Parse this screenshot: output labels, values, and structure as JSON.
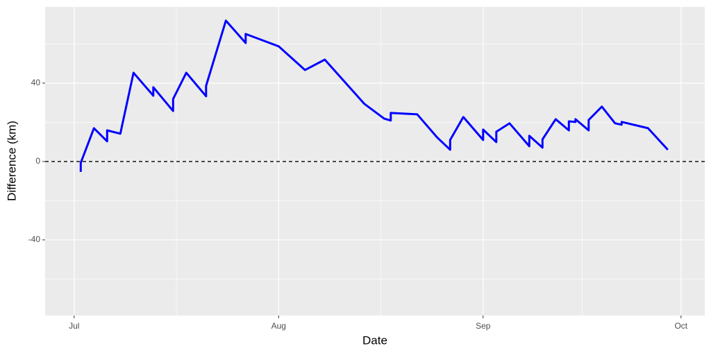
{
  "chart_data": {
    "type": "line",
    "xlabel": "Date",
    "ylabel": "Difference (km)",
    "x": [
      1,
      1,
      3,
      5,
      5,
      7,
      9,
      12,
      12,
      15,
      15,
      17,
      20,
      20,
      23,
      26,
      26,
      31,
      35,
      38,
      44,
      47,
      48,
      48,
      52,
      55,
      57,
      57,
      59,
      62,
      62,
      64,
      64,
      66,
      69,
      69,
      71,
      71,
      73,
      75,
      75,
      76,
      76,
      78,
      78,
      80,
      82,
      83,
      83,
      87,
      90
    ],
    "series": [
      {
        "color": "#0000ff",
        "values": [
          -5.3,
          -0.7,
          17.0,
          10.3,
          15.9,
          14.2,
          45.3,
          33.6,
          37.9,
          25.8,
          31.9,
          45.3,
          33.3,
          38.6,
          71.9,
          60.5,
          65.1,
          58.8,
          46.7,
          52.0,
          29.4,
          21.9,
          20.9,
          24.8,
          24.1,
          12.4,
          6.0,
          11.0,
          22.7,
          11.0,
          16.3,
          9.9,
          15.2,
          19.5,
          7.8,
          13.1,
          7.1,
          11.3,
          21.6,
          15.9,
          20.5,
          20.2,
          21.6,
          15.9,
          21.2,
          28.0,
          19.5,
          18.8,
          20.2,
          17.0,
          6.0
        ]
      }
    ],
    "hline": 0,
    "xlim": [
      -4.4,
      95.6
    ],
    "xticks": [
      {
        "value": 0,
        "label": "Jul"
      },
      {
        "value": 31,
        "label": "Aug"
      },
      {
        "value": 62,
        "label": "Sep"
      },
      {
        "value": 92,
        "label": "Oct"
      }
    ],
    "ylim": [
      -78.6,
      78.9
    ],
    "yticks": [
      -40,
      0,
      40
    ],
    "grid": true
  }
}
